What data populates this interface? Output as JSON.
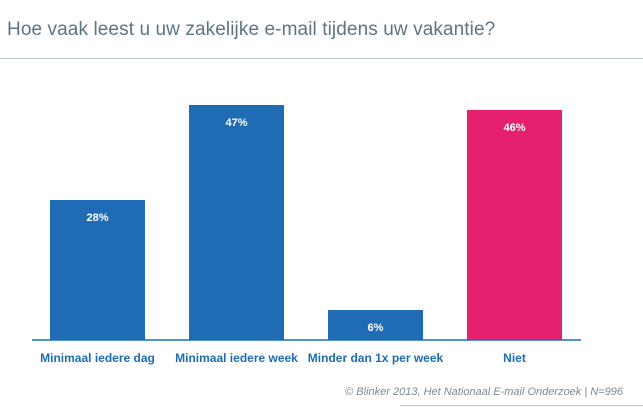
{
  "colors": {
    "primary": "#1f6cb5",
    "accent": "#e5206f"
  },
  "chart_data": {
    "type": "bar",
    "title": "Hoe vaak leest u uw zakelijke e-mail tijdens uw vakantie?",
    "categories": [
      "Minimaal iedere dag",
      "Minimaal iedere week",
      "Minder dan 1x per week",
      "Niet"
    ],
    "values": [
      28,
      47,
      6,
      46
    ],
    "value_labels": [
      "28%",
      "47%",
      "6%",
      "46%"
    ],
    "bar_colors": [
      "#1f6cb5",
      "#1f6cb5",
      "#1f6cb5",
      "#e5206f"
    ],
    "xlabel": "",
    "ylabel": "",
    "ylim": [
      0,
      47
    ],
    "grid": false,
    "legend": false
  },
  "source": "© Blinker 2013, Het Nationaal E-mail Onderzoek | N=996"
}
